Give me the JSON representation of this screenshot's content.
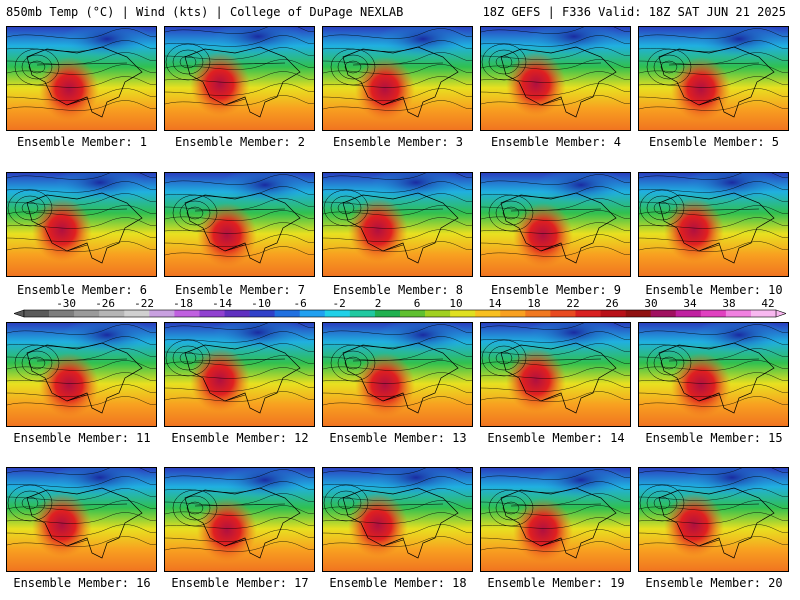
{
  "header": {
    "left": "850mb Temp (°C) | Wind (kts) | College of DuPage NEXLAB",
    "right": "18Z GEFS | F336 Valid: 18Z SAT JUN 21 2025"
  },
  "label_prefix": "Ensemble Member: ",
  "members": [
    1,
    2,
    3,
    4,
    5,
    6,
    7,
    8,
    9,
    10,
    11,
    12,
    13,
    14,
    15,
    16,
    17,
    18,
    19,
    20
  ],
  "colorbar": {
    "ticks": [
      "-30",
      "-26",
      "-22",
      "-18",
      "-14",
      "-10",
      "-6",
      "-2",
      "2",
      "6",
      "10",
      "14",
      "18",
      "22",
      "26",
      "30",
      "34",
      "38",
      "42"
    ],
    "colors": [
      "#5a5a5a",
      "#7d7d7d",
      "#9a9a9a",
      "#b5b5b5",
      "#d0d0d0",
      "#c8a0e0",
      "#c060e0",
      "#9040d0",
      "#6030c0",
      "#3040c8",
      "#2070e0",
      "#20a0f0",
      "#20d0e8",
      "#20c8a0",
      "#20b050",
      "#60c030",
      "#a0d020",
      "#e0e020",
      "#f8c020",
      "#f8a020",
      "#f07820",
      "#e84a20",
      "#d82020",
      "#b81018",
      "#901010",
      "#a01060",
      "#c020a0",
      "#e040c0",
      "#f080e0",
      "#f8b8f0"
    ]
  }
}
